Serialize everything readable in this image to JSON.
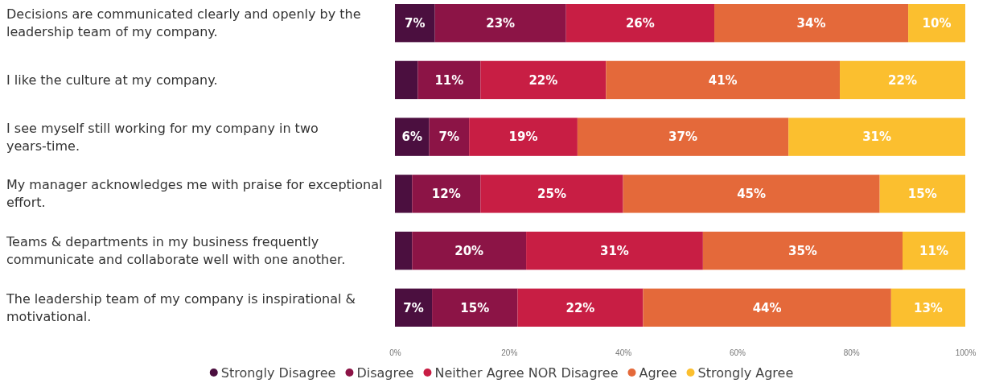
{
  "chart_data": {
    "type": "bar",
    "orientation": "horizontal",
    "stacked": true,
    "categories": [
      "Decisions are communicated clearly and openly by the leadership team of my company.",
      "I like the culture at my company.",
      "I see myself still working for my company in two years-time.",
      "My manager acknowledges me with praise for exceptional effort.",
      "Teams & departments in my business frequently communicate and collaborate well with one another.",
      "The leadership team of my company is inspirational & motivational."
    ],
    "series": [
      {
        "name": "Strongly Disagree",
        "color": "#4b0f3f",
        "values": [
          7,
          4,
          6,
          3,
          3,
          6.5
        ],
        "value_labels": [
          "7%",
          null,
          "6%",
          null,
          null,
          "7%"
        ]
      },
      {
        "name": "Disagree",
        "color": "#8c1446",
        "values": [
          23,
          11,
          7,
          12,
          20,
          15
        ],
        "value_labels": [
          "23%",
          "11%",
          "7%",
          "12%",
          "20%",
          "15%"
        ]
      },
      {
        "name": "Neither Agree NOR Disagree",
        "color": "#c81e44",
        "values": [
          26,
          22,
          19,
          25,
          31,
          22
        ],
        "value_labels": [
          "26%",
          "22%",
          "19%",
          "25%",
          "31%",
          "22%"
        ]
      },
      {
        "name": "Agree",
        "color": "#e4693a",
        "values": [
          34,
          41,
          37,
          45,
          35,
          43.5
        ],
        "value_labels": [
          "34%",
          "41%",
          "37%",
          "45%",
          "35%",
          "44%"
        ]
      },
      {
        "name": "Strongly Agree",
        "color": "#fbbf2f",
        "values": [
          10,
          22,
          31,
          15,
          11,
          13
        ],
        "value_labels": [
          "10%",
          "22%",
          "31%",
          "15%",
          "11%",
          "13%"
        ]
      }
    ],
    "xlim": [
      0,
      100
    ],
    "xticks": [
      {
        "value": 0,
        "label": "0%"
      },
      {
        "value": 20,
        "label": "20%"
      },
      {
        "value": 40,
        "label": "40%"
      },
      {
        "value": 60,
        "label": "60%"
      },
      {
        "value": 80,
        "label": "80%"
      },
      {
        "value": 100,
        "label": "100%"
      }
    ],
    "legend": "bottom",
    "marker": "circle"
  }
}
